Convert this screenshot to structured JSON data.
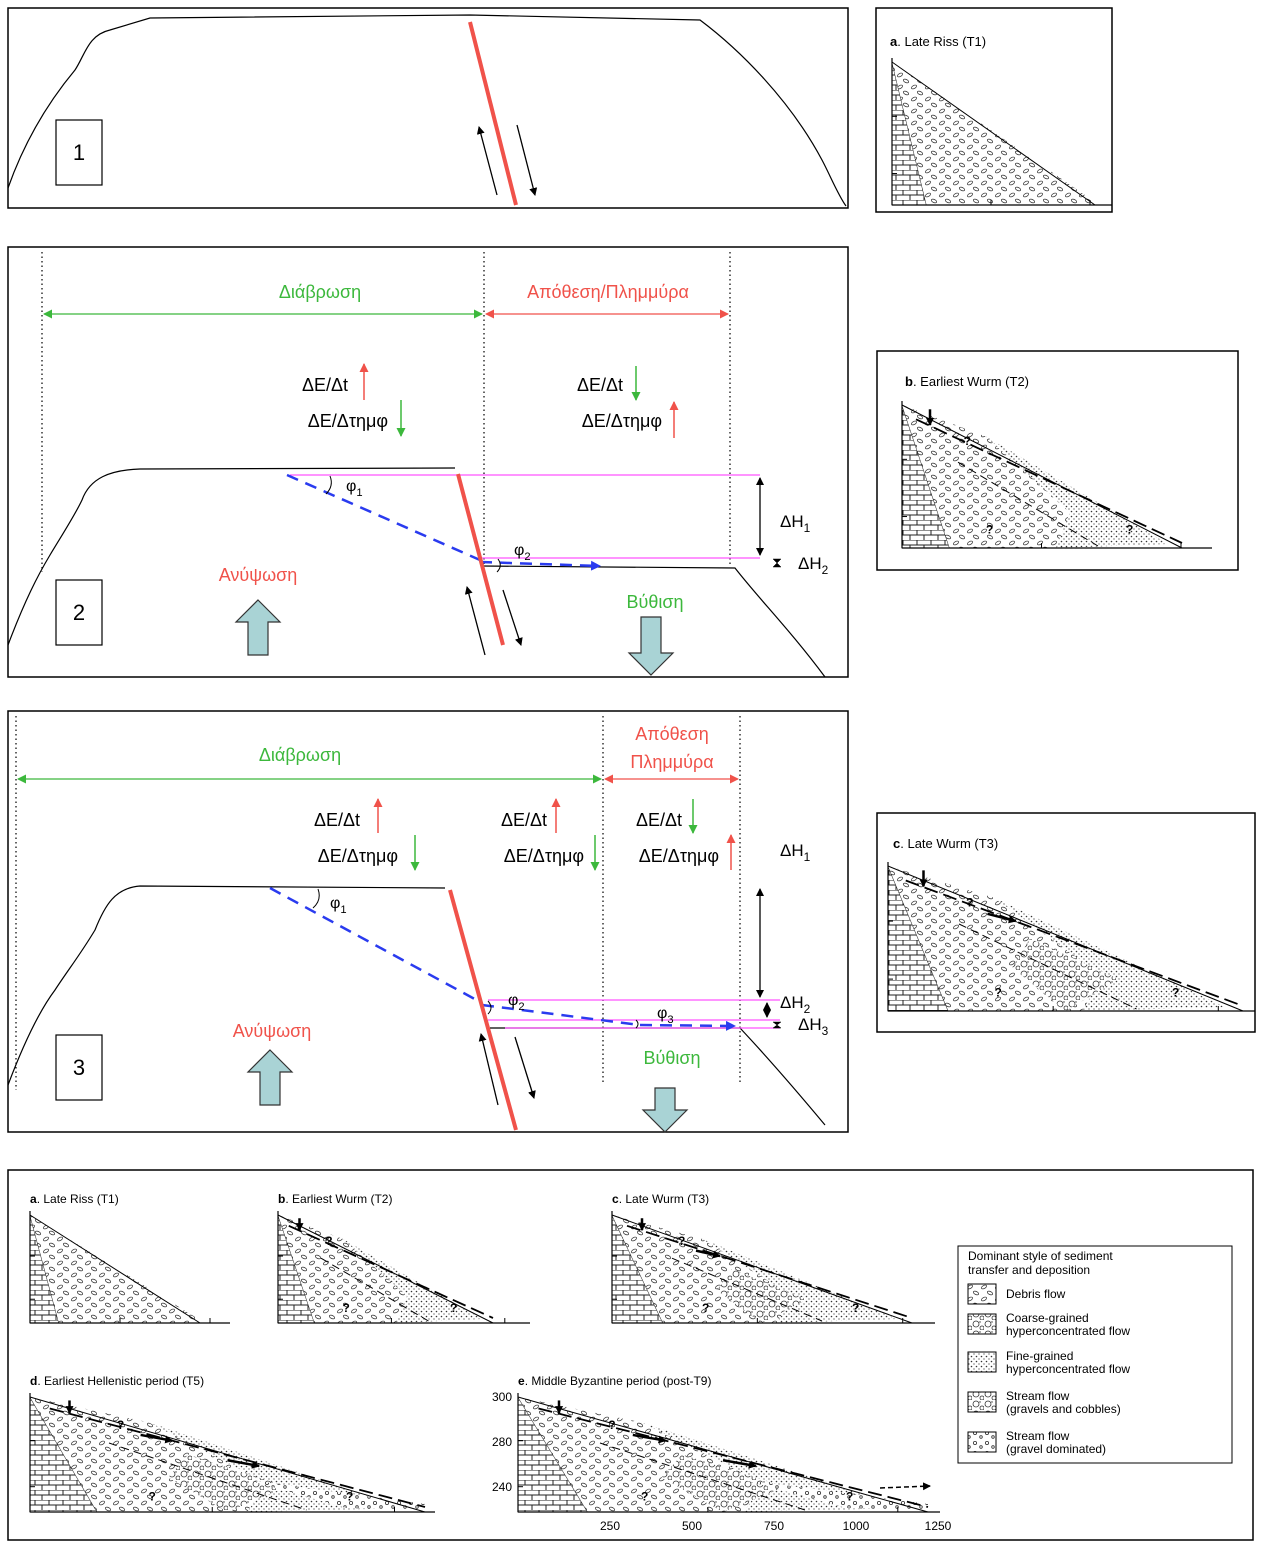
{
  "panel1": {
    "label": "1"
  },
  "inset_a": {
    "letter": "a",
    "title": ". Late Riss (T1)"
  },
  "panel2": {
    "label": "2",
    "erosion": "Διάβρωση",
    "deposition": "Απόθεση/Πλημμύρα",
    "rates": [
      {
        "rate": "ΔΕ/Δt",
        "slope": "ΔΕ/Δτημφ"
      },
      {
        "rate": "ΔΕ/Δt",
        "slope": "ΔΕ/Δτημφ"
      }
    ],
    "angles": [
      {
        "s": "φ",
        "sub": "1"
      },
      {
        "s": "φ",
        "sub": "2"
      }
    ],
    "heights": [
      {
        "s": "ΔH",
        "sub": "1"
      },
      {
        "s": "ΔH",
        "sub": "2"
      }
    ],
    "uplift": "Ανύψωση",
    "subsidence": "Βύθιση"
  },
  "inset_b": {
    "letter": "b",
    "title": ". Earliest Wurm (T2)"
  },
  "panel3": {
    "label": "3",
    "erosion": "Διάβρωση",
    "deposition": [
      "Απόθεση",
      "Πλημμύρα"
    ],
    "rates": [
      {
        "rate": "ΔΕ/Δt",
        "slope": "ΔΕ/Δτημφ"
      },
      {
        "rate": "ΔΕ/Δt",
        "slope": "ΔΕ/Δτημφ"
      },
      {
        "rate": "ΔΕ/Δt",
        "slope": "ΔΕ/Δτημφ"
      }
    ],
    "angles": [
      {
        "s": "φ",
        "sub": "1"
      },
      {
        "s": "φ",
        "sub": "2"
      },
      {
        "s": "φ",
        "sub": "3"
      }
    ],
    "heights": [
      {
        "s": "ΔH",
        "sub": "1"
      },
      {
        "s": "ΔH",
        "sub": "2"
      },
      {
        "s": "ΔH",
        "sub": "3"
      }
    ],
    "uplift": "Ανύψωση",
    "subsidence": "Βύθιση"
  },
  "inset_c": {
    "letter": "c",
    "title": ". Late Wurm (T3)"
  },
  "question": "?",
  "figure": {
    "panels": [
      {
        "letter": "a",
        "title": ". Late Riss (T1)"
      },
      {
        "letter": "b",
        "title": ". Earliest Wurm (T2)"
      },
      {
        "letter": "c",
        "title": ". Late Wurm (T3)"
      },
      {
        "letter": "d",
        "title": ". Earliest Hellenistic period (T5)"
      },
      {
        "letter": "e",
        "title": ". Middle Byzantine period (post-T9)"
      }
    ],
    "yticks": [
      300,
      280,
      240
    ],
    "xticks": [
      250,
      500,
      750,
      1000,
      1250
    ],
    "legend": {
      "title": [
        "Dominant style of sediment",
        "transfer and deposition"
      ],
      "items": [
        [
          "Debris flow"
        ],
        [
          "Coarse-grained",
          "hyperconcentrated flow"
        ],
        [
          "Fine-grained",
          "hyperconcentrated flow"
        ],
        [
          "Stream flow",
          "(gravels and cobbles)"
        ],
        [
          "Stream flow",
          "(gravel dominated)"
        ]
      ]
    }
  }
}
